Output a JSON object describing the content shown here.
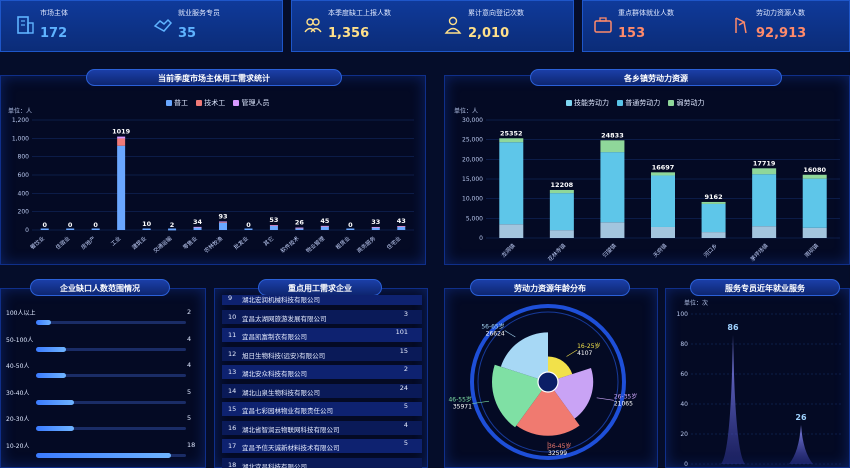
{
  "stats": [
    {
      "label": "市场主体",
      "value": "172",
      "icon": "building-icon",
      "color": "#5fb3ff"
    },
    {
      "label": "就业服务专员",
      "value": "35",
      "icon": "handshake-icon",
      "color": "#5fb3ff"
    },
    {
      "label": "本季度缺工上报人数",
      "value": "1,356",
      "icon": "people-icon",
      "color": "#ffe08a"
    },
    {
      "label": "累计意向登记次数",
      "value": "2,010",
      "icon": "person-icon",
      "color": "#ffe08a"
    },
    {
      "label": "重点群体就业人数",
      "value": "153",
      "icon": "briefcase-icon",
      "color": "#ff8a6a"
    },
    {
      "label": "劳动力资源人数",
      "value": "92,913",
      "icon": "worker-icon",
      "color": "#ff8a6a"
    }
  ],
  "panels": {
    "demand_title": "当前季度市场主体用工需求统计",
    "town_title": "各乡镇劳动力资源",
    "shortage_title": "企业缺口人数范围情况",
    "key_title": "重点用工需求企业",
    "age_title": "劳动力资源年龄分布",
    "service_title": "服务专员近年就业服务"
  },
  "chart_data": [
    {
      "type": "bar",
      "title": "当前季度市场主体用工需求统计",
      "unit": "单位：人",
      "ylim": [
        0,
        1200
      ],
      "yticks": [
        "0",
        "200",
        "400",
        "600",
        "800",
        "1,000",
        "1,200"
      ],
      "legend": [
        "普工",
        "技术工",
        "管理人员"
      ],
      "colors": [
        "#6aa7ff",
        "#f07a78",
        "#d79aff"
      ],
      "categories": [
        "餐饮业",
        "住宿业",
        "房地产",
        "工业",
        "建筑业",
        "交通运输",
        "零售业",
        "农林牧渔",
        "批发业",
        "其它",
        "软件技术",
        "物业管理",
        "租赁业",
        "商务服务",
        "住宅业"
      ],
      "totals": [
        0,
        0,
        0,
        1019,
        10,
        2,
        34,
        93,
        0,
        53,
        26,
        45,
        0,
        33,
        43
      ],
      "series": [
        {
          "name": "普工",
          "values": [
            0,
            0,
            0,
            919,
            8,
            2,
            28,
            80,
            0,
            45,
            20,
            38,
            0,
            28,
            36
          ]
        },
        {
          "name": "技术工",
          "values": [
            0,
            0,
            0,
            80,
            1,
            0,
            4,
            8,
            0,
            5,
            4,
            4,
            0,
            3,
            4
          ]
        },
        {
          "name": "管理人员",
          "values": [
            0,
            0,
            0,
            20,
            1,
            0,
            2,
            5,
            0,
            3,
            2,
            3,
            0,
            2,
            3
          ]
        }
      ]
    },
    {
      "type": "bar",
      "title": "各乡镇劳动力资源",
      "unit": "单位：人",
      "ylim": [
        0,
        30000
      ],
      "yticks": [
        "0",
        "5,000",
        "10,000",
        "15,000",
        "20,000",
        "25,000",
        "30,000"
      ],
      "legend": [
        "技能劳动力",
        "普通劳动力",
        "弱劳动力"
      ],
      "colors": [
        "#7fd6f2",
        "#59c4e8",
        "#8fd79a"
      ],
      "categories": [
        "龙洞镇",
        "花林寺镇",
        "归望镇",
        "天府镇",
        "河口乡",
        "茅坪场镇",
        "雨坝镇"
      ],
      "totals": [
        25352,
        12208,
        24833,
        16697,
        9162,
        17719,
        16080
      ],
      "series": [
        {
          "name": "技能劳动力",
          "values": [
            3500,
            2000,
            4000,
            2800,
            1500,
            3000,
            2600
          ]
        },
        {
          "name": "普通劳动力",
          "values": [
            20852,
            9408,
            17833,
            13097,
            7162,
            13219,
            12480
          ]
        },
        {
          "name": "弱劳动力",
          "values": [
            1000,
            800,
            3000,
            800,
            500,
            1500,
            1000
          ]
        }
      ]
    },
    {
      "type": "bar",
      "title": "企业缺口人数范围情况",
      "orientation": "horizontal",
      "categories": [
        "100人以上",
        "50-100人",
        "40-50人",
        "30-40人",
        "20-30人",
        "10-20人"
      ],
      "values": [
        2,
        4,
        4,
        5,
        5,
        18
      ],
      "xlim": [
        0,
        20
      ]
    },
    {
      "type": "pie",
      "title": "劳动力资源年龄分布",
      "slices": [
        {
          "label": "16-25岁",
          "value": 4107,
          "color": "#f2e14a"
        },
        {
          "label": "26-35岁",
          "value": 21065,
          "color": "#c9a3f5"
        },
        {
          "label": "36-45岁",
          "value": 32599,
          "color": "#f07a70"
        },
        {
          "label": "46-55岁",
          "value": 35971,
          "color": "#7fe0a4"
        },
        {
          "label": "56-65岁",
          "value": 26624,
          "color": "#a7d8f5"
        }
      ]
    },
    {
      "type": "area",
      "title": "服务专员近年就业服务",
      "unit": "单位：次",
      "ylim": [
        0,
        100
      ],
      "yticks": [
        "0",
        "20",
        "40",
        "60",
        "80",
        "100"
      ],
      "peaks": [
        {
          "label": "86",
          "value": 86
        },
        {
          "label": "26",
          "value": 26
        }
      ],
      "color": "#8b8cf0"
    }
  ],
  "key_companies": [
    {
      "idx": "9",
      "name": "湖北宏润机械科技有限公司",
      "count": ""
    },
    {
      "idx": "10",
      "name": "宜昌太湖网旅游发展有限公司",
      "count": "3"
    },
    {
      "idx": "11",
      "name": "宜昌凯富制衣有限公司",
      "count": "101"
    },
    {
      "idx": "12",
      "name": "旭日生物科技(远安)有限公司",
      "count": "15"
    },
    {
      "idx": "13",
      "name": "湖北安众科技有限公司",
      "count": "2"
    },
    {
      "idx": "14",
      "name": "湖北山泉生物科技有限公司",
      "count": "24"
    },
    {
      "idx": "15",
      "name": "宜昌七彩园林物业有限责任公司",
      "count": "5"
    },
    {
      "idx": "16",
      "name": "湖北省智润云物联网科技有限公司",
      "count": "4"
    },
    {
      "idx": "17",
      "name": "宜昌予信天诚新材料技术有限公司",
      "count": "5"
    },
    {
      "idx": "18",
      "name": "湖北宜昌科技有限公司",
      "count": ""
    }
  ]
}
